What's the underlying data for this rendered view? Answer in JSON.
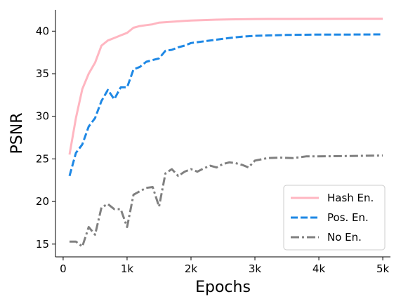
{
  "chart_data": {
    "type": "line",
    "title": "",
    "xlabel": "Epochs",
    "ylabel": "PSNR",
    "xlim": [
      -120,
      5120
    ],
    "ylim": [
      13.5,
      42.5
    ],
    "grid": false,
    "legend_position": "bottom-right",
    "x_ticks": [
      {
        "value": 0,
        "label": "0"
      },
      {
        "value": 1000,
        "label": "1k"
      },
      {
        "value": 2000,
        "label": "2k"
      },
      {
        "value": 3000,
        "label": "3k"
      },
      {
        "value": 4000,
        "label": "4k"
      },
      {
        "value": 5000,
        "label": "5k"
      }
    ],
    "y_ticks": [
      {
        "value": 15,
        "label": "15"
      },
      {
        "value": 20,
        "label": "20"
      },
      {
        "value": 25,
        "label": "25"
      },
      {
        "value": 30,
        "label": "30"
      },
      {
        "value": 35,
        "label": "35"
      },
      {
        "value": 40,
        "label": "40"
      }
    ],
    "series": [
      {
        "name": "Hash En.",
        "color": "#ffb6c1",
        "style": "solid",
        "points": [
          [
            100,
            25.5
          ],
          [
            200,
            29.8
          ],
          [
            300,
            33.2
          ],
          [
            400,
            35.0
          ],
          [
            500,
            36.3
          ],
          [
            600,
            38.3
          ],
          [
            700,
            38.9
          ],
          [
            800,
            39.2
          ],
          [
            900,
            39.5
          ],
          [
            1000,
            39.8
          ],
          [
            1100,
            40.4
          ],
          [
            1200,
            40.6
          ],
          [
            1300,
            40.7
          ],
          [
            1400,
            40.8
          ],
          [
            1500,
            41.0
          ],
          [
            1600,
            41.05
          ],
          [
            1700,
            41.1
          ],
          [
            1800,
            41.15
          ],
          [
            1900,
            41.2
          ],
          [
            2000,
            41.25
          ],
          [
            2200,
            41.3
          ],
          [
            2400,
            41.35
          ],
          [
            2600,
            41.38
          ],
          [
            2800,
            41.4
          ],
          [
            3000,
            41.42
          ],
          [
            3500,
            41.43
          ],
          [
            4000,
            41.44
          ],
          [
            4500,
            41.45
          ],
          [
            5000,
            41.45
          ]
        ]
      },
      {
        "name": "Pos. En.",
        "color": "#1e88e5",
        "style": "dashed",
        "points": [
          [
            100,
            23.0
          ],
          [
            200,
            25.7
          ],
          [
            300,
            26.7
          ],
          [
            400,
            28.8
          ],
          [
            500,
            29.8
          ],
          [
            600,
            31.8
          ],
          [
            700,
            33.1
          ],
          [
            800,
            32.0
          ],
          [
            900,
            33.4
          ],
          [
            1000,
            33.4
          ],
          [
            1100,
            35.5
          ],
          [
            1200,
            35.8
          ],
          [
            1300,
            36.4
          ],
          [
            1400,
            36.6
          ],
          [
            1500,
            36.8
          ],
          [
            1600,
            37.7
          ],
          [
            1700,
            37.8
          ],
          [
            1800,
            38.1
          ],
          [
            1900,
            38.3
          ],
          [
            2000,
            38.6
          ],
          [
            2200,
            38.8
          ],
          [
            2400,
            39.0
          ],
          [
            2600,
            39.2
          ],
          [
            2800,
            39.35
          ],
          [
            3000,
            39.45
          ],
          [
            3500,
            39.55
          ],
          [
            4000,
            39.6
          ],
          [
            4500,
            39.6
          ],
          [
            5000,
            39.62
          ]
        ]
      },
      {
        "name": "No En.",
        "color": "#808080",
        "style": "dashdot",
        "points": [
          [
            100,
            15.3
          ],
          [
            200,
            15.3
          ],
          [
            300,
            14.7
          ],
          [
            400,
            17.0
          ],
          [
            500,
            16.1
          ],
          [
            600,
            19.3
          ],
          [
            700,
            19.7
          ],
          [
            800,
            19.1
          ],
          [
            900,
            19.1
          ],
          [
            1000,
            17.0
          ],
          [
            1100,
            20.8
          ],
          [
            1200,
            21.2
          ],
          [
            1300,
            21.6
          ],
          [
            1400,
            21.7
          ],
          [
            1500,
            19.4
          ],
          [
            1600,
            23.3
          ],
          [
            1700,
            23.8
          ],
          [
            1800,
            23.0
          ],
          [
            1900,
            23.5
          ],
          [
            2000,
            23.8
          ],
          [
            2100,
            23.5
          ],
          [
            2200,
            23.9
          ],
          [
            2300,
            24.2
          ],
          [
            2400,
            24.0
          ],
          [
            2500,
            24.4
          ],
          [
            2600,
            24.6
          ],
          [
            2700,
            24.5
          ],
          [
            2800,
            24.3
          ],
          [
            2900,
            24.0
          ],
          [
            3000,
            24.8
          ],
          [
            3200,
            25.1
          ],
          [
            3400,
            25.15
          ],
          [
            3600,
            25.1
          ],
          [
            3800,
            25.3
          ],
          [
            4000,
            25.3
          ],
          [
            4500,
            25.35
          ],
          [
            5000,
            25.4
          ]
        ]
      }
    ]
  }
}
